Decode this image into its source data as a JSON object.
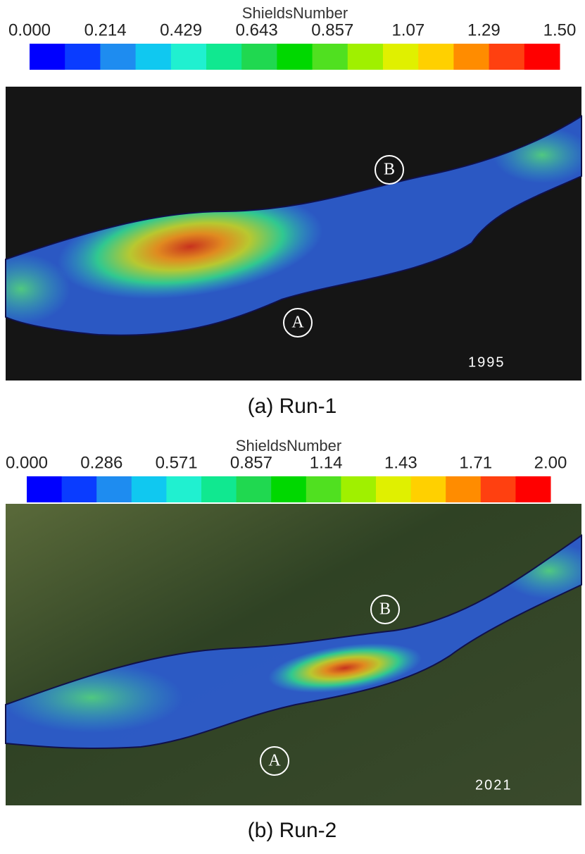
{
  "panels": [
    {
      "colorbar_title": "ShieldsNumber",
      "ticks": [
        "0.000",
        "0.214",
        "0.429",
        "0.643",
        "0.857",
        "1.07",
        "1.29",
        "1.50"
      ],
      "point_b": "B",
      "point_a": "A",
      "year": "1995",
      "caption": "(a)  Run-1"
    },
    {
      "colorbar_title": "ShieldsNumber",
      "ticks": [
        "0.000",
        "0.286",
        "0.571",
        "0.857",
        "1.14",
        "1.43",
        "1.71",
        "2.00"
      ],
      "point_b": "B",
      "point_a": "A",
      "year": "2021",
      "caption": "(b)  Run-2"
    }
  ]
}
